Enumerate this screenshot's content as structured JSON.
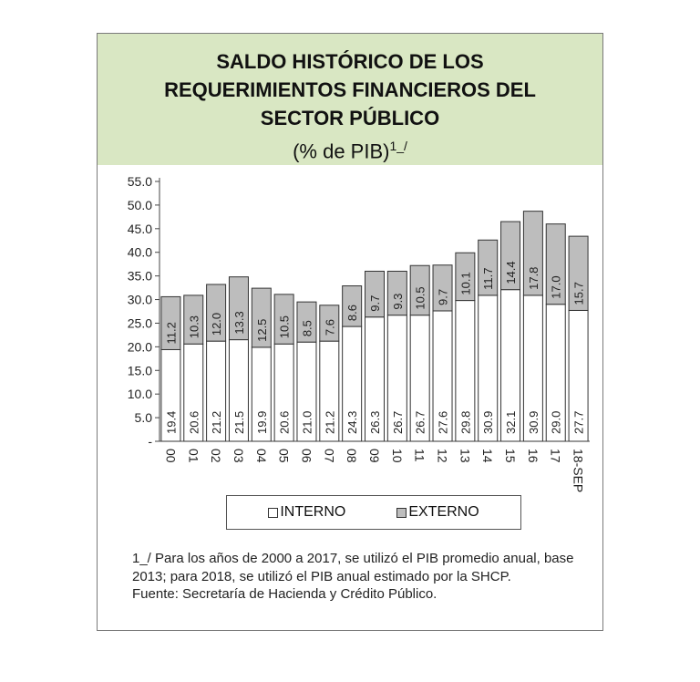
{
  "header": {
    "title_lines": [
      "SALDO HISTÓRICO DE LOS",
      "REQUERIMIENTOS FINANCIEROS DEL",
      "SECTOR PÚBLICO"
    ],
    "subtitle": "(% de PIB)",
    "subtitle_note": "1_/"
  },
  "colors": {
    "interno": "#ffffff",
    "externo": "#bdbdbd",
    "outline": "#333333",
    "header_bg": "#d9e7c3"
  },
  "legend": {
    "interno": "INTERNO",
    "externo": "EXTERNO"
  },
  "notes": {
    "line1": "1_/ Para los años de 2000 a 2017, se utilizó el PIB promedio anual, base 2013; para 2018, se utilizó el PIB anual estimado por la SHCP.",
    "line2": "Fuente: Secretaría de Hacienda y Crédito Público."
  },
  "chart_data": {
    "type": "bar",
    "stacked": true,
    "categories": [
      "00",
      "01",
      "02",
      "03",
      "04",
      "05",
      "06",
      "07",
      "08",
      "09",
      "10",
      "11",
      "12",
      "13",
      "14",
      "15",
      "16",
      "17",
      "18-SEP"
    ],
    "series": [
      {
        "name": "INTERNO",
        "values": [
          19.4,
          20.6,
          21.2,
          21.5,
          19.9,
          20.6,
          21.0,
          21.2,
          24.3,
          26.3,
          26.7,
          26.7,
          27.6,
          29.8,
          30.9,
          32.1,
          30.9,
          29.0,
          27.7
        ]
      },
      {
        "name": "EXTERNO",
        "values": [
          11.2,
          10.3,
          12.0,
          13.3,
          12.5,
          10.5,
          8.5,
          7.6,
          8.6,
          9.7,
          9.3,
          10.5,
          9.7,
          10.1,
          11.7,
          14.4,
          17.8,
          17.0,
          15.7
        ]
      }
    ],
    "ylim": [
      0,
      55
    ],
    "yticks": [
      "-",
      "5.0",
      "10.0",
      "15.0",
      "20.0",
      "25.0",
      "30.0",
      "35.0",
      "40.0",
      "45.0",
      "50.0",
      "55.0"
    ],
    "grid": false,
    "legend_position": "bottom"
  }
}
